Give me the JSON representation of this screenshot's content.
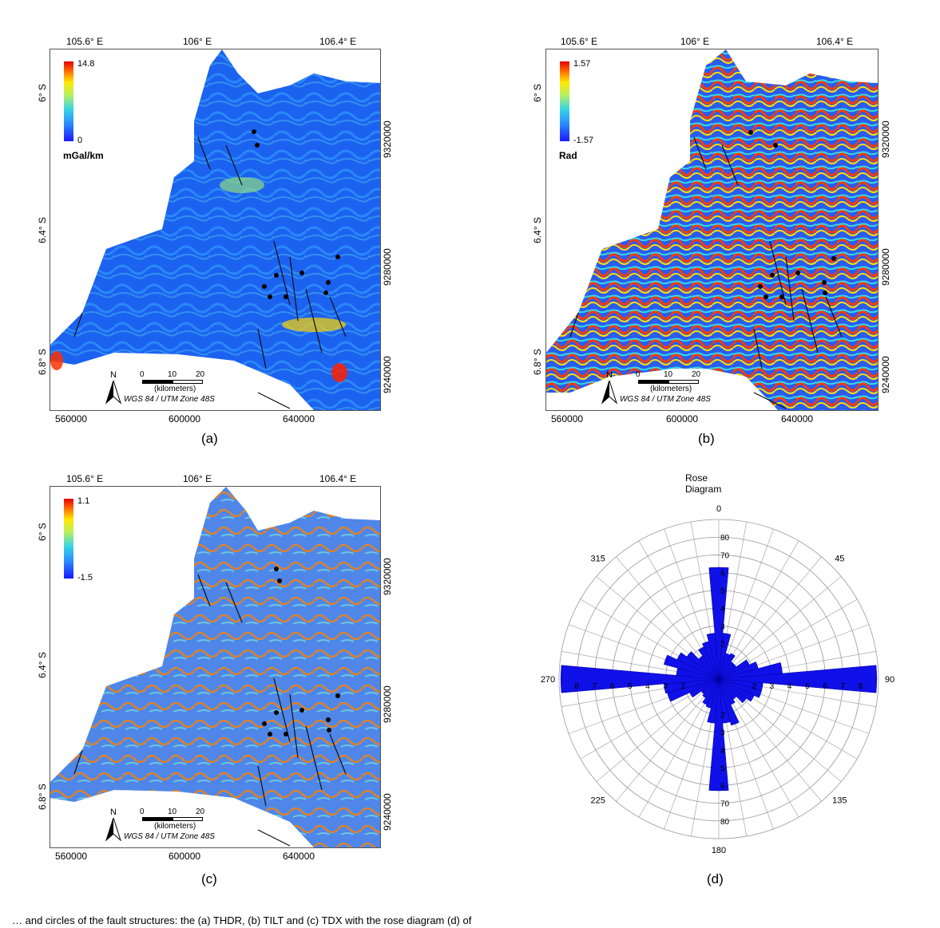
{
  "panels": [
    {
      "label": "(a)",
      "legend": {
        "max": "14.8",
        "min": "0",
        "unit": "mGal/km"
      },
      "lon_ticks": [
        "105.6° E",
        "106° E",
        "106.4° E"
      ],
      "lat_ticks": [
        "6° S",
        "6.4° S",
        "6.8° S"
      ],
      "easting_ticks": [
        "560000",
        "600000",
        "640000"
      ],
      "northing_ticks": [
        "9320000",
        "9280000",
        "9240000"
      ]
    },
    {
      "label": "(b)",
      "legend": {
        "max": "1.57",
        "min": "-1.57",
        "unit": "Rad"
      },
      "lon_ticks": [
        "105.6° E",
        "106° E",
        "106.4° E"
      ],
      "lat_ticks": [
        "6° S",
        "6.4° S",
        "6.8° S"
      ],
      "easting_ticks": [
        "560000",
        "600000",
        "640000"
      ],
      "northing_ticks": [
        "9320000",
        "9280000",
        "9240000"
      ]
    },
    {
      "label": "(c)",
      "legend": {
        "max": "1.1",
        "min": "-1.5",
        "unit": ""
      },
      "lon_ticks": [
        "105.6° E",
        "106° E",
        "106.4° E"
      ],
      "lat_ticks": [
        "6° S",
        "6.8° S",
        "6.4° S"
      ],
      "easting_ticks": [
        "560000",
        "600000",
        "640000"
      ],
      "northing_ticks": [
        "9320000",
        "9280000",
        "9240000"
      ]
    }
  ],
  "scale": {
    "ticks": [
      "0",
      "10",
      "20"
    ],
    "unit": "(kilometers)",
    "north": "N"
  },
  "crs": "WGS 84 / UTM Zone 48S",
  "rose": {
    "label": "(d)",
    "title": "Rose Diagram",
    "direction_labels": [
      "0",
      "45",
      "90",
      "135",
      "180",
      "225",
      "270",
      "315"
    ],
    "radial_labels_outer": [
      "80",
      "70"
    ],
    "radial_labels_inner": [
      "6",
      "5",
      "4",
      "3",
      "2"
    ],
    "radial_labels_horizontal": [
      "2",
      "3",
      "4",
      "5",
      "6",
      "7",
      "8"
    ]
  },
  "chart_data": {
    "type": "rose",
    "title": "Rose Diagram",
    "bin_width_deg": 10,
    "directions_deg": [
      0,
      10,
      20,
      30,
      40,
      50,
      60,
      70,
      80,
      90,
      100,
      110,
      120,
      130,
      140,
      150,
      160,
      170,
      180,
      190,
      200,
      210,
      220,
      230,
      240,
      250,
      260,
      270,
      280,
      290,
      300,
      310,
      320,
      330,
      340,
      350
    ],
    "values": [
      6.3,
      2.6,
      1.5,
      1.6,
      1.2,
      1.2,
      1.9,
      2.3,
      3.6,
      8.9,
      2.5,
      2.5,
      2.2,
      1.9,
      1.4,
      1.6,
      2.7,
      2.5,
      6.3,
      2.5,
      1.7,
      1.6,
      1.3,
      1.2,
      1.8,
      3.0,
      3.1,
      8.9,
      2.4,
      3.2,
      2.6,
      2.2,
      1.6,
      2.0,
      2.2,
      2.6
    ]
  },
  "caption": "… and circles of the fault structures: the (a) THDR, (b) TILT and (c) TDX with the rose diagram (d) of"
}
